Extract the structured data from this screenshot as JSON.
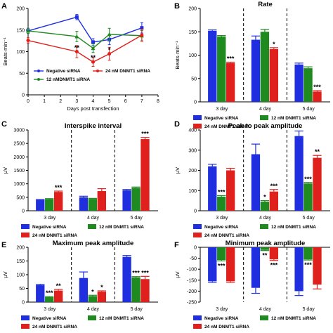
{
  "colors": {
    "negative": "#1f2fe0",
    "dnmt12": "#1f8a1f",
    "dnmt24": "#e0201c",
    "axis": "#000000"
  },
  "chart_data": [
    {
      "id": "A",
      "type": "line",
      "xlabel": "Days post transfection",
      "ylabel": "Beats·min⁻¹",
      "xlim": [
        0,
        8
      ],
      "ylim": [
        0,
        200
      ],
      "xticks": [
        "0",
        "1",
        "2",
        "3",
        "4",
        "5",
        "6",
        "7",
        "8"
      ],
      "yticks": [
        "0",
        "50",
        "100",
        "150",
        "200"
      ],
      "series": [
        {
          "name": "Negative siRNA",
          "color_key": "negative",
          "x": [
            0,
            3,
            4,
            5,
            7
          ],
          "y": [
            148,
            180,
            122,
            128,
            155
          ],
          "err": [
            6,
            6,
            8,
            12,
            12
          ],
          "marker": "square"
        },
        {
          "name": "12 nM DNMT1 siRNA",
          "color_key": "dnmt12",
          "x": [
            0,
            3,
            4,
            5,
            7
          ],
          "y": [
            148,
            135,
            108,
            140,
            137
          ],
          "err": [
            6,
            12,
            10,
            14,
            12
          ],
          "marker": "triangle"
        },
        {
          "name": "24 nM DNMT1 siRNA",
          "color_key": "dnmt24",
          "x": [
            0,
            3,
            4,
            5,
            7
          ],
          "y": [
            126,
            100,
            76,
            95,
            138
          ],
          "err": [
            6,
            14,
            10,
            15,
            14
          ],
          "marker": "circle"
        }
      ],
      "annotations": [
        {
          "x": 3,
          "y": 104,
          "text": "**"
        },
        {
          "x": 4,
          "y": 81,
          "text": "**"
        },
        {
          "x": 5,
          "y": 99,
          "text": "*"
        }
      ]
    },
    {
      "id": "B",
      "type": "bar",
      "title": "Rate",
      "ylabel": "Beats·min⁻¹",
      "categories": [
        "3 day",
        "4 day",
        "5 day"
      ],
      "ylim": [
        0,
        200
      ],
      "yticks": [
        "0",
        "50",
        "100",
        "150",
        "200"
      ],
      "series": [
        {
          "name": "Negative siRNA",
          "color_key": "negative",
          "values": [
            152,
            133,
            80
          ],
          "err": [
            2,
            8,
            3
          ]
        },
        {
          "name": "12 nM DNMT1 siRNA",
          "color_key": "dnmt12",
          "values": [
            140,
            150,
            72
          ],
          "err": [
            2,
            5,
            3
          ]
        },
        {
          "name": "24 nM DNMT1 siRNA",
          "color_key": "dnmt24",
          "values": [
            83,
            113,
            22
          ],
          "err": [
            2,
            3,
            2
          ]
        }
      ],
      "annotations": [
        {
          "group": 0,
          "series": 2,
          "text": "***"
        },
        {
          "group": 1,
          "series": 2,
          "text": "*"
        },
        {
          "group": 2,
          "series": 2,
          "text": "***"
        }
      ]
    },
    {
      "id": "C",
      "type": "bar",
      "title": "Interspike interval",
      "ylabel": "μV",
      "categories": [
        "3 day",
        "4 day",
        "5 day"
      ],
      "ylim": [
        0,
        3000
      ],
      "yticks": [
        "0",
        "500",
        "1000",
        "1500",
        "2000",
        "2500",
        "3000"
      ],
      "series": [
        {
          "name": "Negative siRNA",
          "color_key": "negative",
          "values": [
            400,
            500,
            760
          ],
          "err": [
            20,
            40,
            30
          ]
        },
        {
          "name": "12 nM DNMT1 siRNA",
          "color_key": "dnmt12",
          "values": [
            430,
            440,
            850
          ],
          "err": [
            20,
            20,
            30
          ]
        },
        {
          "name": "24 nM DNMT1 siRNA",
          "color_key": "dnmt24",
          "values": [
            700,
            730,
            2660
          ],
          "err": [
            30,
            90,
            60
          ]
        }
      ],
      "annotations": [
        {
          "group": 0,
          "series": 2,
          "text": "***"
        },
        {
          "group": 2,
          "series": 2,
          "text": "***"
        }
      ]
    },
    {
      "id": "D",
      "type": "bar",
      "title": "Peak to peak amplitude",
      "ylabel": "μV",
      "categories": [
        "3 day",
        "4 day",
        "5 day"
      ],
      "ylim": [
        0,
        400
      ],
      "yticks": [
        "0",
        "100",
        "200",
        "300",
        "400"
      ],
      "series": [
        {
          "name": "Negative siRNA",
          "color_key": "negative",
          "values": [
            220,
            280,
            370
          ],
          "err": [
            10,
            50,
            25
          ]
        },
        {
          "name": "12 nM DNMT1 siRNA",
          "color_key": "dnmt12",
          "values": [
            70,
            45,
            135
          ],
          "err": [
            5,
            5,
            5
          ]
        },
        {
          "name": "24 nM DNMT1 siRNA",
          "color_key": "dnmt24",
          "values": [
            200,
            95,
            262
          ],
          "err": [
            10,
            10,
            12
          ]
        }
      ],
      "annotations": [
        {
          "group": 0,
          "series": 1,
          "text": "***"
        },
        {
          "group": 1,
          "series": 1,
          "text": "*"
        },
        {
          "group": 1,
          "series": 2,
          "text": "***"
        },
        {
          "group": 2,
          "series": 1,
          "text": "***"
        },
        {
          "group": 2,
          "series": 2,
          "text": "**"
        }
      ]
    },
    {
      "id": "E",
      "type": "bar",
      "title": "Maximum peak amplitude",
      "ylabel": "μV",
      "categories": [
        "3 day",
        "4 day",
        "5 day"
      ],
      "ylim": [
        0,
        200
      ],
      "yticks": [
        "0",
        "50",
        "100",
        "150",
        "200"
      ],
      "series": [
        {
          "name": "Negative siRNA",
          "color_key": "negative",
          "values": [
            62,
            88,
            165
          ],
          "err": [
            3,
            22,
            5
          ]
        },
        {
          "name": "12 nM DNMT1 siRNA",
          "color_key": "dnmt12",
          "values": [
            18,
            22,
            90
          ],
          "err": [
            2,
            3,
            3
          ]
        },
        {
          "name": "24 nM DNMT1 siRNA",
          "color_key": "dnmt24",
          "values": [
            42,
            38,
            84
          ],
          "err": [
            4,
            3,
            10
          ]
        }
      ],
      "annotations": [
        {
          "group": 0,
          "series": 1,
          "text": "***"
        },
        {
          "group": 0,
          "series": 2,
          "text": "**"
        },
        {
          "group": 1,
          "series": 1,
          "text": "*"
        },
        {
          "group": 1,
          "series": 2,
          "text": "*"
        },
        {
          "group": 2,
          "series": 1,
          "text": "***"
        },
        {
          "group": 2,
          "series": 2,
          "text": "***"
        }
      ]
    },
    {
      "id": "F",
      "type": "bar",
      "title": "Minimum peak amplitude",
      "ylabel": "μV",
      "categories": [
        "3 day",
        "4 day",
        "5 day"
      ],
      "ylim": [
        -250,
        0
      ],
      "yticks": [
        "0",
        "-50",
        "-100",
        "-150",
        "-200",
        "-250"
      ],
      "series": [
        {
          "name": "Negative siRNA",
          "color_key": "negative",
          "values": [
            -155,
            -185,
            -200
          ],
          "err": [
            5,
            25,
            20
          ]
        },
        {
          "name": "12 nM DNMT1 siRNA",
          "color_key": "dnmt12",
          "values": [
            -58,
            -12,
            -55
          ],
          "err": [
            4,
            3,
            3
          ]
        },
        {
          "name": "24 nM DNMT1 siRNA",
          "color_key": "dnmt24",
          "values": [
            -155,
            -55,
            -170
          ],
          "err": [
            5,
            5,
            20
          ]
        }
      ],
      "annotations": [
        {
          "group": 0,
          "series": 1,
          "text": "***"
        },
        {
          "group": 1,
          "series": 1,
          "text": "**"
        },
        {
          "group": 1,
          "series": 2,
          "text": "***"
        },
        {
          "group": 2,
          "series": 1,
          "text": "***"
        }
      ]
    }
  ],
  "legend_labels": {
    "A": [
      "Negative siRNA",
      "12 nMDNMT1 siRNA",
      "24 nM DNMT1 siRNA"
    ],
    "B": [
      "Negative siRNA",
      "12 nM DNMT1 siRNA",
      "24 nM DNMT1 siRNA"
    ],
    "C": [
      "Negative siRNA",
      "12 nM DNMT1 siRNA",
      "24 nM DNMT1 siRNA"
    ],
    "D": [
      "Negative siRNA",
      "12 nM DNMT1 siRNA",
      "24 nM DNMT1 siRNA"
    ],
    "E": [
      "Negative siRNA",
      "12 nM DNMT1 siRNA",
      "24 nM DNMT1 siRNA"
    ],
    "F": [
      "Negative siRNA",
      "12 nM DNMT1 siRNA",
      "24 nM DNMT1 siRNA"
    ]
  }
}
